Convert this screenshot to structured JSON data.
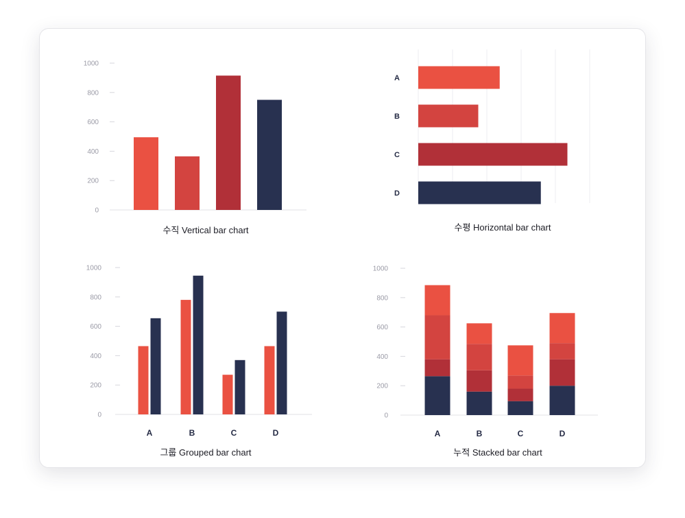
{
  "colors": {
    "red": "#ea5142",
    "mid_red": "#d34440",
    "dark_red": "#b13038",
    "navy": "#283150"
  },
  "chart_data": [
    {
      "type": "bar",
      "title": "수직 Vertical bar chart",
      "orientation": "vertical",
      "yticks": [
        "0",
        "200",
        "400",
        "600",
        "800",
        "1000"
      ],
      "ylim": [
        0,
        1000
      ],
      "values": [
        495,
        365,
        915,
        750
      ],
      "bar_colors": [
        "#ea5142",
        "#d34440",
        "#b13038",
        "#283150"
      ]
    },
    {
      "type": "bar",
      "title": "수평 Horizontal bar chart",
      "orientation": "horizontal",
      "categories": [
        "A",
        "B",
        "C",
        "D"
      ],
      "xlim": [
        0,
        1000
      ],
      "values": [
        475,
        350,
        870,
        715
      ],
      "bar_colors": [
        "#ea5142",
        "#d34440",
        "#b13038",
        "#283150"
      ],
      "grid": true
    },
    {
      "type": "bar",
      "title": "그룹 Grouped bar chart",
      "orientation": "vertical",
      "categories": [
        "A",
        "B",
        "C",
        "D"
      ],
      "yticks": [
        "0",
        "200",
        "400",
        "600",
        "800",
        "1000"
      ],
      "ylim": [
        0,
        1000
      ],
      "series": [
        {
          "values": [
            465,
            780,
            270,
            465
          ],
          "color": "#ea5142"
        },
        {
          "values": [
            655,
            945,
            370,
            700
          ],
          "color": "#283150"
        }
      ]
    },
    {
      "type": "bar",
      "title": "누적 Stacked bar chart",
      "orientation": "vertical",
      "stacked": true,
      "categories": [
        "A",
        "B",
        "C",
        "D"
      ],
      "yticks": [
        "0",
        "200",
        "400",
        "600",
        "800",
        "1000"
      ],
      "ylim": [
        0,
        1000
      ],
      "series": [
        {
          "values": [
            265,
            160,
            95,
            200
          ],
          "color": "#283150"
        },
        {
          "values": [
            115,
            145,
            85,
            180
          ],
          "color": "#b13038"
        },
        {
          "values": [
            300,
            180,
            90,
            110
          ],
          "color": "#d34440"
        },
        {
          "values": [
            205,
            140,
            205,
            205
          ],
          "color": "#ea5142"
        }
      ]
    }
  ]
}
